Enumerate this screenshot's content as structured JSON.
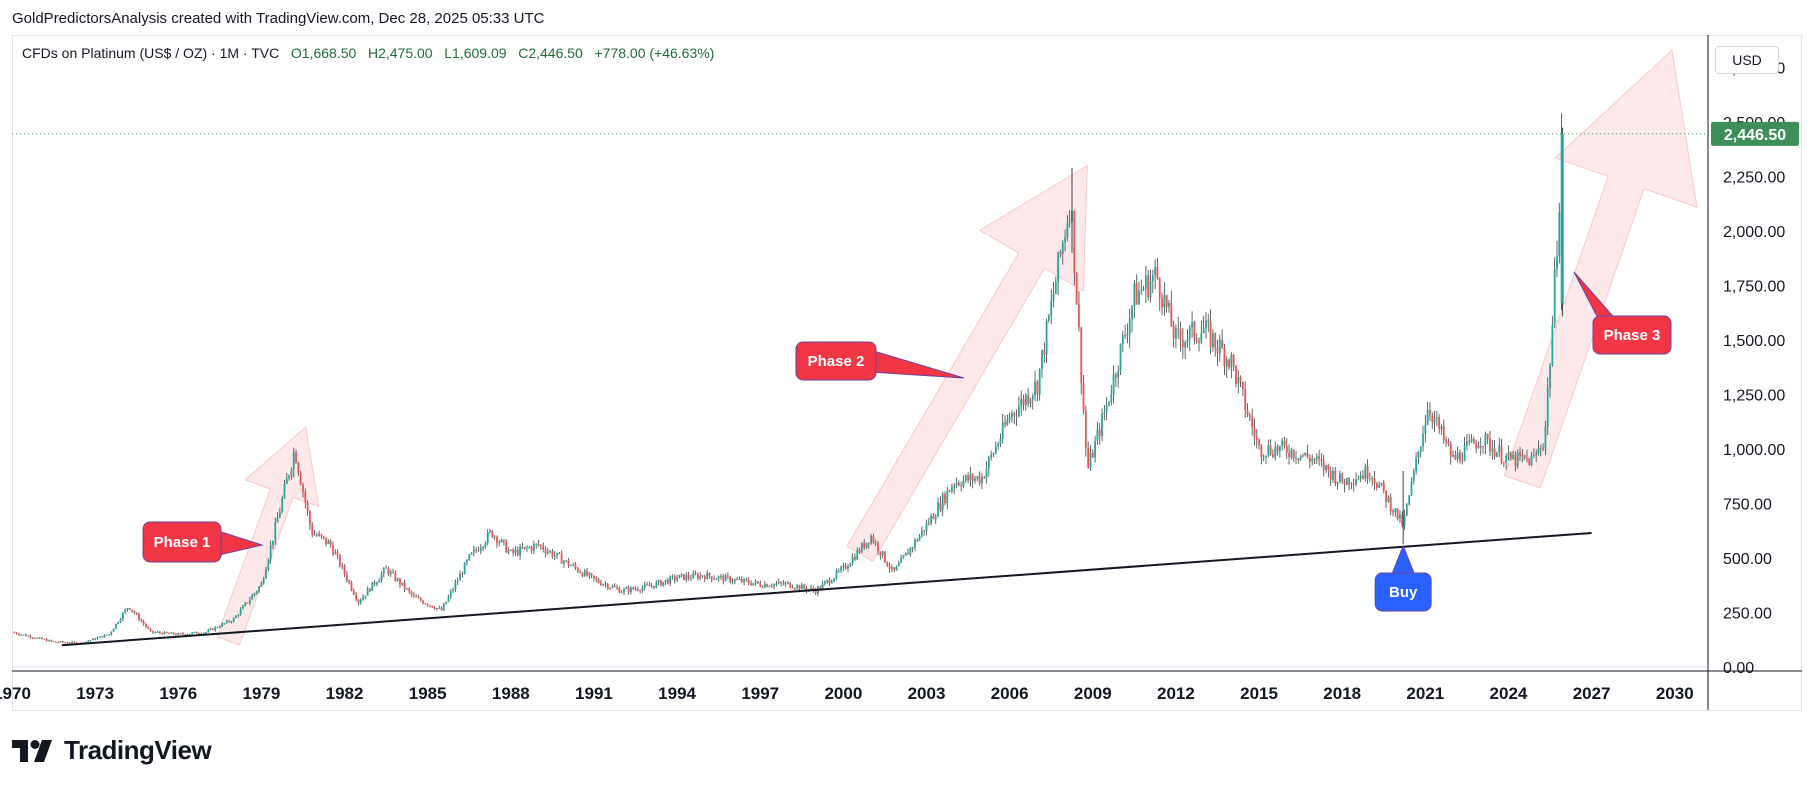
{
  "header": {
    "credit": "GoldPredictorsAnalysis created with TradingView.com, Dec 28, 2025 05:33 UTC"
  },
  "legend": {
    "symbol": "CFDs on Platinum (US$ / OZ) · 1M · TVC",
    "open": "O1,668.50",
    "high": "H2,475.00",
    "low": "L1,609.09",
    "close": "C2,446.50",
    "change": "+778.00 (+46.63%)"
  },
  "currency_label": "USD",
  "price_label": "2,446.50",
  "logo_text": "TradingView",
  "colors": {
    "up": "#26a69a",
    "down": "#ef5350",
    "price_badge": "#3d8f5a",
    "callout_red": "#f23645",
    "callout_blue": "#2962ff",
    "arrow_fill": "#fde4e4",
    "trendline": "#131722"
  },
  "chart_data": {
    "type": "candlestick",
    "title": "CFDs on Platinum (US$ / OZ)",
    "interval": "1M",
    "xlim": [
      1970,
      2031.2
    ],
    "ylim": [
      0,
      2900
    ],
    "x_ticks": [
      1970,
      1973,
      1976,
      1979,
      1982,
      1985,
      1988,
      1991,
      1994,
      1997,
      2000,
      2003,
      2006,
      2009,
      2012,
      2015,
      2018,
      2021,
      2024,
      2027,
      2030
    ],
    "x_tick_labels": [
      "1970",
      "1973",
      "1976",
      "1979",
      "1982",
      "1985",
      "1988",
      "1991",
      "1994",
      "1997",
      "2000",
      "2003",
      "2006",
      "2009",
      "2012",
      "2015",
      "2018",
      "2021",
      "2024",
      "2027",
      "2030"
    ],
    "y_ticks": [
      0,
      250,
      500,
      750,
      1000,
      1250,
      1500,
      1750,
      2000,
      2250,
      2500,
      2750
    ],
    "y_tick_labels": [
      "0.00",
      "250.00",
      "500.00",
      "750.00",
      "1,000.00",
      "1,250.00",
      "1,500.00",
      "1,750.00",
      "2,000.00",
      "2,250.00",
      "2,500.00",
      "2,750.00"
    ],
    "last_close": 2446.5,
    "price_path": [
      [
        1970.0,
        160
      ],
      [
        1971.5,
        115
      ],
      [
        1972.5,
        110
      ],
      [
        1973.5,
        150
      ],
      [
        1974.2,
        280
      ],
      [
        1975.0,
        160
      ],
      [
        1976.0,
        150
      ],
      [
        1977.0,
        160
      ],
      [
        1978.0,
        220
      ],
      [
        1979.0,
        380
      ],
      [
        1980.2,
        1000
      ],
      [
        1980.8,
        620
      ],
      [
        1981.5,
        560
      ],
      [
        1982.5,
        300
      ],
      [
        1983.5,
        450
      ],
      [
        1984.5,
        320
      ],
      [
        1985.5,
        260
      ],
      [
        1986.5,
        500
      ],
      [
        1987.3,
        620
      ],
      [
        1988.0,
        520
      ],
      [
        1989.0,
        560
      ],
      [
        1990.0,
        480
      ],
      [
        1991.0,
        400
      ],
      [
        1992.0,
        350
      ],
      [
        1993.0,
        370
      ],
      [
        1994.0,
        410
      ],
      [
        1995.0,
        420
      ],
      [
        1996.0,
        400
      ],
      [
        1997.0,
        380
      ],
      [
        1998.0,
        380
      ],
      [
        1999.0,
        350
      ],
      [
        2000.0,
        450
      ],
      [
        2001.0,
        600
      ],
      [
        2001.8,
        430
      ],
      [
        2003.0,
        650
      ],
      [
        2004.0,
        850
      ],
      [
        2005.0,
        870
      ],
      [
        2006.0,
        1150
      ],
      [
        2007.0,
        1300
      ],
      [
        2008.2,
        2150
      ],
      [
        2008.8,
        900
      ],
      [
        2009.5,
        1200
      ],
      [
        2010.5,
        1700
      ],
      [
        2011.3,
        1800
      ],
      [
        2012.0,
        1500
      ],
      [
        2013.0,
        1550
      ],
      [
        2014.0,
        1400
      ],
      [
        2015.0,
        1000
      ],
      [
        2016.0,
        1000
      ],
      [
        2017.0,
        950
      ],
      [
        2018.0,
        850
      ],
      [
        2019.0,
        900
      ],
      [
        2020.2,
        650
      ],
      [
        2021.1,
        1200
      ],
      [
        2022.0,
        950
      ],
      [
        2023.0,
        1050
      ],
      [
        2024.0,
        950
      ],
      [
        2024.9,
        950
      ],
      [
        2025.3,
        1050
      ],
      [
        2025.6,
        1600
      ],
      [
        2025.95,
        2446.5
      ]
    ],
    "trendline": [
      [
        1971.8,
        100
      ],
      [
        2027.0,
        615
      ]
    ],
    "annotations": [
      {
        "label": "Phase 1",
        "style": "red-callout"
      },
      {
        "label": "Phase 2",
        "style": "red-callout"
      },
      {
        "label": "Phase 3",
        "style": "red-callout"
      },
      {
        "label": "Buy",
        "style": "blue-callout",
        "x": 2020.2,
        "y": 565
      }
    ]
  }
}
